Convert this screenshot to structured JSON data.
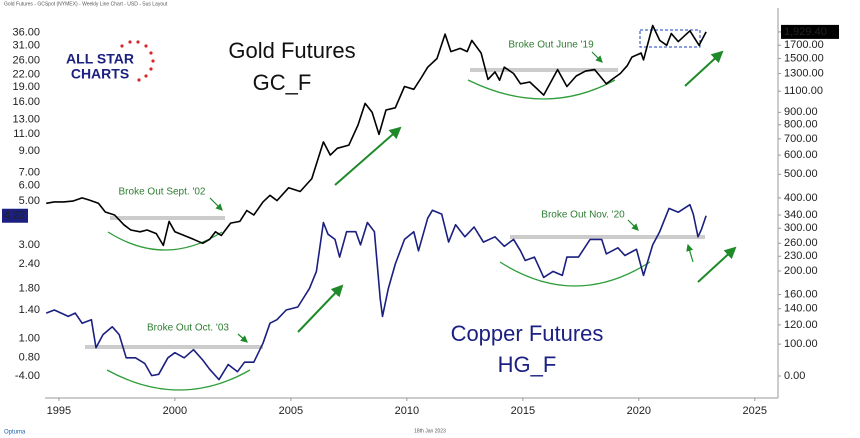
{
  "header": "Gold Futures - GCSpot (NYMEX) - Weekly Line Chart - USD - Sus Layout",
  "logo": {
    "line1": "ALL STAR",
    "line2": "CHARTS"
  },
  "footer": {
    "brand": "Optuma",
    "date": "18th Jan 2023"
  },
  "chart_data": {
    "type": "line",
    "log_scale": true,
    "grid": false,
    "xlim": [
      1994.4,
      2026
    ],
    "xticks": [
      1995,
      2000,
      2005,
      2010,
      2015,
      2020,
      2025
    ],
    "ylim": [
      0.5,
      48
    ],
    "yticks": [
      {
        "value": 36,
        "label": "36.00"
      },
      {
        "value": 31,
        "label": "31.00"
      },
      {
        "value": 26,
        "label": "26.00"
      },
      {
        "value": 22,
        "label": "22.00"
      },
      {
        "value": 19,
        "label": "19.00"
      },
      {
        "value": 16,
        "label": "16.00"
      },
      {
        "value": 13,
        "label": "13.00"
      },
      {
        "value": 11,
        "label": "11.00"
      },
      {
        "value": 9,
        "label": "9.00"
      },
      {
        "value": 7,
        "label": "7.00"
      },
      {
        "value": 6,
        "label": "6.00"
      },
      {
        "value": 5,
        "label": "5.00"
      },
      4.22,
      {
        "value": 3,
        "label": "3.00"
      },
      {
        "value": 2.4,
        "label": "2.40"
      },
      {
        "value": 1.8,
        "label": "1.80"
      },
      {
        "value": 1.4,
        "label": "1.40"
      },
      {
        "value": 1,
        "label": "1.00"
      },
      {
        "value": 0.8,
        "label": "0.80"
      },
      {
        "value": -4,
        "label": "-4.00"
      }
    ],
    "y2lim": [
      60,
      2420
    ],
    "y2ticks": [
      {
        "value": 1929.4,
        "label": "1,929.40"
      },
      {
        "value": 1700,
        "label": "1700.00"
      },
      {
        "value": 1500,
        "label": "1500.00"
      },
      {
        "value": 1300,
        "label": "1300.00"
      },
      {
        "value": 1100,
        "label": "1100.00"
      },
      {
        "value": 900,
        "label": "900.00"
      },
      {
        "value": 800,
        "label": "800.00"
      },
      {
        "value": 700,
        "label": "700.00"
      },
      {
        "value": 600,
        "label": "600.00"
      },
      {
        "value": 500,
        "label": "500.00"
      },
      {
        "value": 400,
        "label": "400.00"
      },
      {
        "value": 340,
        "label": "340.00"
      },
      {
        "value": 300,
        "label": "300.00"
      },
      {
        "value": 260,
        "label": "260.00"
      },
      {
        "value": 230,
        "label": "230.00"
      },
      {
        "value": 200,
        "label": "200.00"
      },
      {
        "value": 160,
        "label": "160.00"
      },
      {
        "value": 140,
        "label": "140.00"
      },
      {
        "value": 120,
        "label": "120.00"
      },
      {
        "value": 100,
        "label": "100.00"
      },
      {
        "value": 0,
        "label": "0.00"
      }
    ],
    "series": [
      {
        "name": "Gold Futures",
        "ticker": "GC_F",
        "color": "#000000",
        "axis": "y2",
        "x": [
          1994.45,
          1994.8,
          1995.2,
          1995.6,
          1996.0,
          1996.3,
          1996.7,
          1997.0,
          1997.4,
          1997.8,
          1998.1,
          1998.5,
          1998.8,
          1999.2,
          1999.5,
          1999.75,
          2000.0,
          2000.4,
          2000.8,
          2001.2,
          2001.5,
          2001.75,
          2002.0,
          2002.4,
          2002.8,
          2003.1,
          2003.4,
          2003.8,
          2004.1,
          2004.4,
          2004.9,
          2005.4,
          2005.9,
          2006.4,
          2006.7,
          2007.0,
          2007.5,
          2007.9,
          2008.2,
          2008.5,
          2008.8,
          2009.1,
          2009.5,
          2009.9,
          2010.3,
          2010.6,
          2010.9,
          2011.3,
          2011.65,
          2011.9,
          2012.3,
          2012.6,
          2012.8,
          2013.2,
          2013.5,
          2013.8,
          2014.0,
          2014.2,
          2014.6,
          2014.9,
          2015.3,
          2015.9,
          2016.5,
          2016.9,
          2017.3,
          2017.7,
          2018.1,
          2018.6,
          2018.9,
          2019.2,
          2019.5,
          2019.7,
          2020.1,
          2020.2,
          2020.6,
          2020.9,
          2021.2,
          2021.4,
          2021.7,
          2022.2,
          2022.6,
          2022.9
        ],
        "values": [
          380,
          385,
          385,
          388,
          400,
          392,
          380,
          350,
          340,
          310,
          295,
          290,
          295,
          285,
          255,
          320,
          290,
          280,
          270,
          260,
          270,
          290,
          280,
          315,
          320,
          355,
          340,
          385,
          410,
          390,
          440,
          425,
          480,
          680,
          600,
          640,
          660,
          800,
          980,
          900,
          730,
          920,
          940,
          1150,
          1120,
          1240,
          1380,
          1500,
          1890,
          1600,
          1650,
          1600,
          1780,
          1580,
          1230,
          1320,
          1220,
          1380,
          1300,
          1180,
          1200,
          1060,
          1350,
          1150,
          1270,
          1330,
          1350,
          1180,
          1240,
          1300,
          1400,
          1520,
          1580,
          1480,
          2050,
          1780,
          1700,
          1900,
          1760,
          1950,
          1700,
          1929.4
        ]
      },
      {
        "name": "Copper Futures",
        "ticker": "HG_F",
        "color": "#1a1f80",
        "x": [
          1994.45,
          1994.8,
          1995.1,
          1995.4,
          1995.7,
          1996.0,
          1996.4,
          1996.6,
          1996.9,
          1997.3,
          1997.6,
          1997.9,
          1998.3,
          1998.7,
          1999.0,
          1999.3,
          1999.7,
          2000.0,
          2000.4,
          2000.8,
          2001.2,
          2001.5,
          2001.9,
          2002.3,
          2002.7,
          2003.0,
          2003.4,
          2003.8,
          2004.1,
          2004.4,
          2004.8,
          2005.3,
          2005.8,
          2006.1,
          2006.4,
          2006.6,
          2006.9,
          2007.1,
          2007.4,
          2007.8,
          2008.0,
          2008.3,
          2008.6,
          2008.85,
          2008.95,
          2009.2,
          2009.5,
          2009.9,
          2010.3,
          2010.5,
          2010.9,
          2011.1,
          2011.5,
          2011.8,
          2012.1,
          2012.5,
          2012.9,
          2013.3,
          2013.8,
          2014.2,
          2014.6,
          2014.9,
          2015.1,
          2015.5,
          2015.9,
          2016.3,
          2016.7,
          2016.9,
          2017.4,
          2017.9,
          2018.4,
          2018.6,
          2019.1,
          2019.4,
          2019.9,
          2020.2,
          2020.6,
          2020.9,
          2021.3,
          2021.7,
          2022.2,
          2022.35,
          2022.55,
          2022.7,
          2022.9
        ],
        "values": [
          1.35,
          1.4,
          1.35,
          1.3,
          1.35,
          1.2,
          1.25,
          0.9,
          1.05,
          1.15,
          1.05,
          0.8,
          0.8,
          0.75,
          0.65,
          0.66,
          0.8,
          0.85,
          0.8,
          0.88,
          0.78,
          0.7,
          0.62,
          0.74,
          0.68,
          0.76,
          0.76,
          0.95,
          1.2,
          1.25,
          1.4,
          1.45,
          1.8,
          2.2,
          3.9,
          3.4,
          3.2,
          2.6,
          3.5,
          3.5,
          3.0,
          3.9,
          3.5,
          1.6,
          1.3,
          1.8,
          2.4,
          3.2,
          3.5,
          2.8,
          4.1,
          4.5,
          4.3,
          3.1,
          3.8,
          3.3,
          3.7,
          3.1,
          3.3,
          2.95,
          3.2,
          2.8,
          2.5,
          2.6,
          2.05,
          2.2,
          2.1,
          2.6,
          2.6,
          3.2,
          3.2,
          2.7,
          2.9,
          2.65,
          2.85,
          2.1,
          3.0,
          3.5,
          4.6,
          4.4,
          4.8,
          4.3,
          3.3,
          3.6,
          4.22
        ]
      }
    ],
    "annotations": [
      "Broke Out June '19",
      "Broke Out Sept. '02",
      "Broke Out Oct. '03",
      "Broke Out Nov. '20"
    ]
  }
}
